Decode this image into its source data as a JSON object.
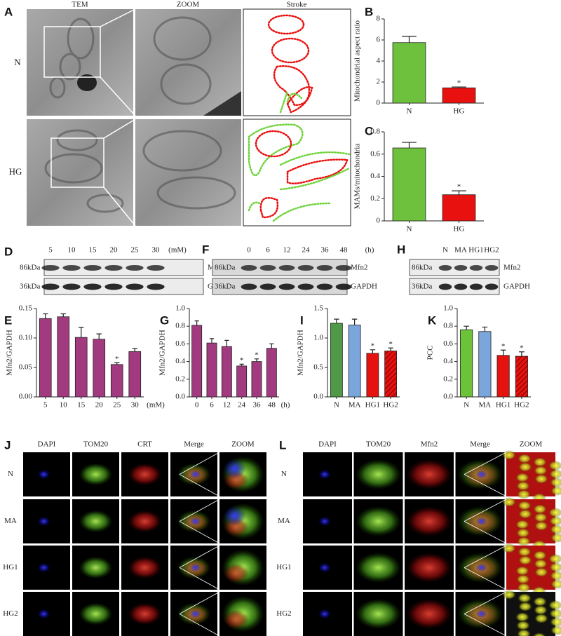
{
  "figure": {
    "panel_A": {
      "label": "A",
      "columns": [
        "TEM",
        "ZOOM",
        "Stroke"
      ],
      "rows": [
        "N",
        "HG"
      ]
    },
    "blots": [
      {
        "label": "D",
        "lanes": [
          "5",
          "10",
          "15",
          "20",
          "25",
          "30"
        ],
        "unit": "(mM)",
        "bands": [
          {
            "size": "86kDa",
            "protein": "Mfn2"
          },
          {
            "size": "36kDa",
            "protein": "GAPDH"
          }
        ]
      },
      {
        "label": "F",
        "lanes": [
          "0",
          "6",
          "12",
          "24",
          "36",
          "48"
        ],
        "unit": "(h)",
        "bands": [
          {
            "size": "86kDa",
            "protein": "Mfn2"
          },
          {
            "size": "36kDa",
            "protein": "GAPDH"
          }
        ]
      },
      {
        "label": "H",
        "lanes": [
          "N",
          "MA",
          "HG1",
          "HG2"
        ],
        "bands": [
          {
            "size": "86kDa",
            "protein": "Mfn2"
          },
          {
            "size": "36kDa",
            "protein": "GAPDH"
          }
        ]
      }
    ],
    "immunofluorescence": [
      {
        "label": "J",
        "columns": [
          "DAPI",
          "TOM20",
          "CRT",
          "Merge",
          "ZOOM"
        ],
        "rows": [
          "N",
          "MA",
          "HG1",
          "HG2"
        ]
      },
      {
        "label": "L",
        "columns": [
          "DAPI",
          "TOM20",
          "Mfn2",
          "Merge",
          "ZOOM"
        ],
        "rows": [
          "N",
          "MA",
          "HG1",
          "HG2"
        ]
      }
    ]
  },
  "chart_data": [
    {
      "type": "bar",
      "panel": "B",
      "ylabel": "Mitochondrial aspect ratio",
      "categories": [
        "N",
        "HG"
      ],
      "values": [
        5.75,
        1.45
      ],
      "errors": [
        0.6,
        0.08
      ],
      "colors": [
        "#6ec13d",
        "#e8110f"
      ],
      "markers": [
        null,
        "*"
      ],
      "ylim": [
        0,
        8
      ],
      "yticks": [
        0,
        2,
        4,
        6,
        8
      ]
    },
    {
      "type": "bar",
      "panel": "C",
      "ylabel": "MAMs/mitochondria",
      "categories": [
        "N",
        "HG"
      ],
      "values": [
        0.655,
        0.235
      ],
      "errors": [
        0.05,
        0.035
      ],
      "colors": [
        "#6ec13d",
        "#e8110f"
      ],
      "markers": [
        null,
        "*"
      ],
      "ylim": [
        0,
        0.8
      ],
      "yticks": [
        0,
        0.2,
        0.4,
        0.6,
        0.8
      ]
    },
    {
      "type": "bar",
      "panel": "E",
      "ylabel": "Mfn2/GAPDH",
      "categories": [
        "5",
        "10",
        "15",
        "20",
        "25",
        "30"
      ],
      "x_unit": "(mM)",
      "values": [
        0.133,
        0.136,
        0.101,
        0.098,
        0.055,
        0.077
      ],
      "errors": [
        0.008,
        0.005,
        0.017,
        0.009,
        0.003,
        0.005
      ],
      "color": "#a23a80",
      "markers": [
        null,
        null,
        null,
        null,
        "*",
        null
      ],
      "ylim": [
        0,
        0.15
      ],
      "yticks": [
        {
          "value": 0,
          "label": "0.00"
        },
        0.05,
        {
          "value": 0.1,
          "label": "0.10"
        },
        0.15
      ]
    },
    {
      "type": "bar",
      "panel": "G",
      "ylabel": "Mfn2/GAPDH",
      "categories": [
        "0",
        "6",
        "12",
        "24",
        "36",
        "48"
      ],
      "x_unit": "(h)",
      "values": [
        0.81,
        0.61,
        0.57,
        0.35,
        0.4,
        0.55
      ],
      "errors": [
        0.05,
        0.05,
        0.07,
        0.02,
        0.03,
        0.05
      ],
      "color": "#a23a80",
      "markers": [
        null,
        null,
        null,
        "*",
        "*",
        null
      ],
      "ylim": [
        0,
        1.0
      ],
      "yticks": [
        {
          "value": 0,
          "label": "0.0"
        },
        0.2,
        0.4,
        0.6,
        0.8,
        {
          "value": 1,
          "label": "1.0"
        }
      ]
    },
    {
      "type": "bar",
      "panel": "I",
      "ylabel": "Mfn2/GAPDH",
      "categories": [
        "N",
        "MA",
        "HG1",
        "HG2"
      ],
      "values": [
        1.25,
        1.22,
        0.74,
        0.78
      ],
      "errors": [
        0.07,
        0.1,
        0.06,
        0.05
      ],
      "colors": [
        "#4f9a47",
        "#7ba6dc",
        "#e5120f",
        "#e5120f"
      ],
      "hatched": [
        false,
        false,
        false,
        true
      ],
      "markers": [
        null,
        null,
        "*",
        "*"
      ],
      "ylim": [
        0,
        1.5
      ],
      "yticks": [
        {
          "value": 0,
          "label": "0.0"
        },
        0.5,
        {
          "value": 1,
          "label": "1.0"
        },
        1.5
      ]
    },
    {
      "type": "bar",
      "panel": "K",
      "ylabel": "PCC",
      "categories": [
        "N",
        "MA",
        "HG1",
        "HG2"
      ],
      "values": [
        0.76,
        0.74,
        0.47,
        0.46
      ],
      "errors": [
        0.04,
        0.05,
        0.06,
        0.05
      ],
      "colors": [
        "#6cc33a",
        "#7ba6dc",
        "#e5120f",
        "#e5120f"
      ],
      "hatched": [
        false,
        false,
        false,
        true
      ],
      "markers": [
        null,
        null,
        "*",
        "*"
      ],
      "ylim": [
        0,
        1.0
      ],
      "yticks": [
        {
          "value": 0,
          "label": "0.0"
        },
        0.2,
        0.4,
        0.6,
        0.8,
        {
          "value": 1,
          "label": "1.0"
        }
      ]
    }
  ]
}
